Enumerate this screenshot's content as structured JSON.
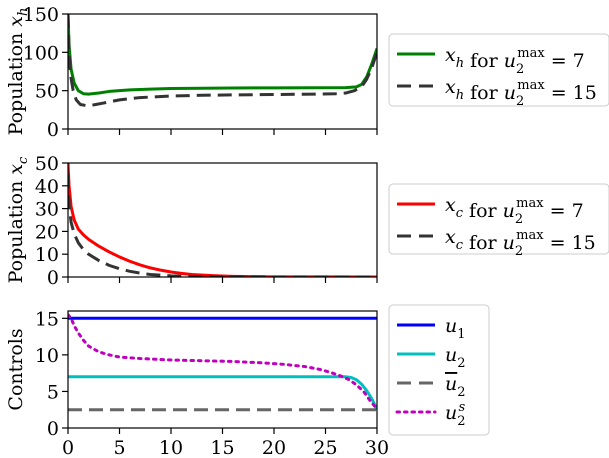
{
  "chart_data": [
    {
      "type": "line",
      "ylabel": "Population",
      "ylabel_var": "x",
      "ylabel_sub": "h",
      "xlim": [
        0,
        30
      ],
      "ylim": [
        0,
        150
      ],
      "yticks": [
        0,
        50,
        100,
        150
      ],
      "xticks": [
        0,
        5,
        10,
        15,
        20,
        25,
        30
      ],
      "show_x_tick_labels": false,
      "legend": "outside-right",
      "series": [
        {
          "name_var": "x",
          "name_sub": "h",
          "name_mid": "for",
          "name_u": "u",
          "name_sub2": "2",
          "name_sup": "max",
          "name_eq": "= 7",
          "color": "#008000",
          "style": "solid",
          "x": [
            0,
            0.1,
            0.3,
            0.6,
            1.0,
            1.5,
            2.0,
            3,
            4,
            6,
            8,
            10,
            13,
            16,
            20,
            24,
            27,
            28,
            28.5,
            29,
            29.5,
            30
          ],
          "y": [
            150,
            110,
            78,
            60,
            50,
            46,
            45.5,
            47,
            49,
            51,
            52,
            52.8,
            53.2,
            53.5,
            53.7,
            53.8,
            54,
            55,
            58,
            68,
            85,
            105
          ]
        },
        {
          "name_var": "x",
          "name_sub": "h",
          "name_mid": "for",
          "name_u": "u",
          "name_sub2": "2",
          "name_sup": "max",
          "name_eq": "= 15",
          "color": "#333333",
          "style": "dashed",
          "x": [
            0,
            0.1,
            0.25,
            0.5,
            0.8,
            1.2,
            1.8,
            2.5,
            3.5,
            5,
            7,
            10,
            13,
            16,
            20,
            24,
            26,
            27,
            27.8,
            28.5,
            29,
            29.5,
            30
          ],
          "y": [
            150,
            100,
            70,
            50,
            38,
            32,
            30.5,
            31.5,
            34,
            38,
            41,
            43,
            44,
            44.5,
            45,
            45.5,
            46,
            47,
            50,
            55,
            65,
            80,
            100
          ]
        }
      ]
    },
    {
      "type": "line",
      "ylabel": "Population",
      "ylabel_var": "x",
      "ylabel_sub": "c",
      "xlim": [
        0,
        30
      ],
      "ylim": [
        0,
        50
      ],
      "yticks": [
        0,
        10,
        20,
        30,
        40,
        50
      ],
      "xticks": [
        0,
        5,
        10,
        15,
        20,
        25,
        30
      ],
      "show_x_tick_labels": false,
      "legend": "outside-right",
      "series": [
        {
          "name_var": "x",
          "name_sub": "c",
          "name_mid": "for",
          "name_u": "u",
          "name_sub2": "2",
          "name_sup": "max",
          "name_eq": "= 7",
          "color": "#ff0000",
          "style": "solid",
          "x": [
            0,
            0.1,
            0.3,
            0.6,
            1.0,
            1.5,
            2,
            3,
            4,
            5,
            6,
            7,
            8,
            9,
            10,
            11,
            12,
            14,
            16,
            18,
            20,
            25,
            30
          ],
          "y": [
            50,
            40,
            31,
            25,
            21,
            18.5,
            16.5,
            13.5,
            11,
            8.8,
            6.9,
            5.3,
            4,
            3,
            2.2,
            1.6,
            1.1,
            0.6,
            0.3,
            0.15,
            0.08,
            0.03,
            0.01
          ]
        },
        {
          "name_var": "x",
          "name_sub": "c",
          "name_mid": "for",
          "name_u": "u",
          "name_sub2": "2",
          "name_sup": "max",
          "name_eq": "= 15",
          "color": "#333333",
          "style": "dashed",
          "x": [
            0,
            0.1,
            0.3,
            0.6,
            1.0,
            1.5,
            2,
            3,
            4,
            5,
            6,
            7,
            8,
            10,
            12,
            15,
            20,
            25,
            30
          ],
          "y": [
            45,
            32,
            24,
            19,
            15,
            12,
            10,
            7.2,
            5.1,
            3.6,
            2.5,
            1.7,
            1.1,
            0.5,
            0.2,
            0.08,
            0.02,
            0.01,
            0.005
          ]
        }
      ]
    },
    {
      "type": "line",
      "ylabel": "Controls",
      "xlim": [
        0,
        30
      ],
      "ylim": [
        0,
        16
      ],
      "yticks": [
        0,
        5,
        10,
        15
      ],
      "xticks": [
        0,
        5,
        10,
        15,
        20,
        25,
        30
      ],
      "show_x_tick_labels": true,
      "legend": "outside-right",
      "series": [
        {
          "name_var": "u",
          "name_sub": "1",
          "color": "#0000ff",
          "style": "solid",
          "x": [
            0,
            30
          ],
          "y": [
            15,
            15
          ]
        },
        {
          "name_var": "u",
          "name_sub": "2",
          "color": "#00bfbf",
          "style": "solid",
          "x": [
            0,
            27,
            27.5,
            28,
            28.5,
            29,
            29.5,
            30
          ],
          "y": [
            7,
            7,
            6.9,
            6.6,
            6.0,
            5.1,
            4.0,
            2.5
          ]
        },
        {
          "name_var": "u",
          "name_sub": "2",
          "name_bar": true,
          "color": "#666666",
          "style": "dashed",
          "x": [
            0,
            30
          ],
          "y": [
            2.5,
            2.5
          ]
        },
        {
          "name_var": "u",
          "name_sub": "2",
          "name_sup": "s",
          "color": "#bf00bf",
          "style": "dotted",
          "x": [
            0,
            0.3,
            0.6,
            1,
            1.5,
            2,
            3,
            4,
            5,
            7,
            10,
            13,
            16,
            19,
            21,
            23,
            24.5,
            25.5,
            26.5,
            27.3,
            28,
            28.7,
            29.3,
            30
          ],
          "y": [
            15.5,
            15,
            14,
            13,
            12,
            11.2,
            10.4,
            10.0,
            9.7,
            9.5,
            9.3,
            9.2,
            9.1,
            8.9,
            8.7,
            8.4,
            8.0,
            7.6,
            7.1,
            6.6,
            5.9,
            5.0,
            3.8,
            2.6
          ]
        }
      ]
    }
  ]
}
